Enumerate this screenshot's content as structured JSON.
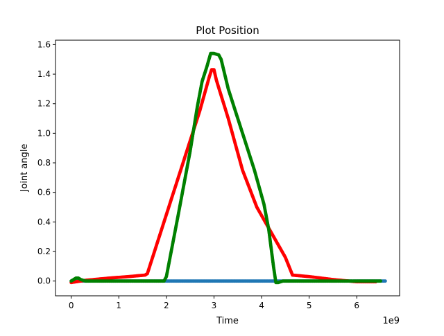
{
  "chart_data": {
    "type": "scatter",
    "title": "Plot Position",
    "xlabel": "Time",
    "ylabel": "Joint angle",
    "x_offset_label": "1e9",
    "x_unit_scale": 1000000000,
    "xlim": [
      -330000000,
      6900000000
    ],
    "ylim": [
      -0.1,
      1.63
    ],
    "grid": false,
    "x_ticks": [
      0,
      1000000000,
      2000000000,
      3000000000,
      4000000000,
      5000000000,
      6000000000
    ],
    "x_tick_labels": [
      "0",
      "1",
      "2",
      "3",
      "4",
      "5",
      "6"
    ],
    "y_ticks": [
      0.0,
      0.2,
      0.4,
      0.6,
      0.8,
      1.0,
      1.2,
      1.4,
      1.6
    ],
    "y_tick_labels": [
      "0.0",
      "0.2",
      "0.4",
      "0.6",
      "0.8",
      "1.0",
      "1.2",
      "1.4",
      "1.6"
    ],
    "colors": {
      "series_1": "#1f77b4",
      "series_2": "#ff0000",
      "series_3": "#008000"
    },
    "series": [
      {
        "color": "#1f77b4",
        "points": [
          [
            0,
            0.0
          ],
          [
            500000000,
            0.0
          ],
          [
            1000000000,
            0.0
          ],
          [
            2000000000,
            0.0
          ],
          [
            3000000000,
            0.0
          ],
          [
            4000000000,
            0.0
          ],
          [
            5000000000,
            0.0
          ],
          [
            6000000000,
            0.0
          ],
          [
            6350000000,
            0.0
          ],
          [
            6600000000,
            0.0
          ]
        ]
      },
      {
        "color": "#ff0000",
        "points": [
          [
            0,
            -0.01
          ],
          [
            300000000,
            0.005
          ],
          [
            800000000,
            0.02
          ],
          [
            1200000000,
            0.03
          ],
          [
            1550000000,
            0.04
          ],
          [
            1600000000,
            0.05
          ],
          [
            1800000000,
            0.25
          ],
          [
            2100000000,
            0.55
          ],
          [
            2400000000,
            0.85
          ],
          [
            2700000000,
            1.15
          ],
          [
            2900000000,
            1.38
          ],
          [
            2950000000,
            1.43
          ],
          [
            3000000000,
            1.43
          ],
          [
            3050000000,
            1.36
          ],
          [
            3300000000,
            1.1
          ],
          [
            3600000000,
            0.75
          ],
          [
            3900000000,
            0.5
          ],
          [
            4200000000,
            0.33
          ],
          [
            4500000000,
            0.16
          ],
          [
            4650000000,
            0.04
          ],
          [
            5000000000,
            0.03
          ],
          [
            5500000000,
            0.01
          ],
          [
            6000000000,
            -0.005
          ],
          [
            6400000000,
            -0.005
          ]
        ]
      },
      {
        "color": "#008000",
        "points": [
          [
            0,
            0.0
          ],
          [
            50000000,
            0.01
          ],
          [
            100000000,
            0.02
          ],
          [
            150000000,
            0.02
          ],
          [
            200000000,
            0.01
          ],
          [
            300000000,
            0.0
          ],
          [
            1000000000,
            0.0
          ],
          [
            1950000000,
            0.0
          ],
          [
            2000000000,
            0.03
          ],
          [
            2250000000,
            0.45
          ],
          [
            2500000000,
            0.88
          ],
          [
            2650000000,
            1.18
          ],
          [
            2750000000,
            1.35
          ],
          [
            2850000000,
            1.45
          ],
          [
            2930000000,
            1.54
          ],
          [
            3000000000,
            1.54
          ],
          [
            3100000000,
            1.53
          ],
          [
            3150000000,
            1.5
          ],
          [
            3300000000,
            1.3
          ],
          [
            3600000000,
            1.0
          ],
          [
            3850000000,
            0.75
          ],
          [
            4050000000,
            0.52
          ],
          [
            4150000000,
            0.35
          ],
          [
            4250000000,
            0.1
          ],
          [
            4300000000,
            -0.01
          ],
          [
            4350000000,
            -0.01
          ],
          [
            4450000000,
            0.0
          ],
          [
            5000000000,
            0.0
          ],
          [
            6000000000,
            0.0
          ],
          [
            6500000000,
            0.0
          ]
        ]
      }
    ]
  }
}
